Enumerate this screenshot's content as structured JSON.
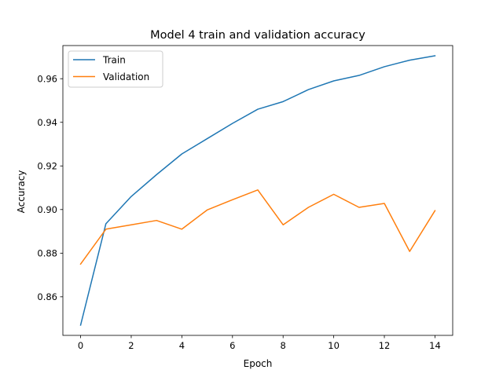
{
  "chart_data": {
    "type": "line",
    "title": "Model 4 train and validation accuracy",
    "xlabel": "Epoch",
    "ylabel": "Accuracy",
    "x": [
      0,
      1,
      2,
      3,
      4,
      5,
      6,
      7,
      8,
      9,
      10,
      11,
      12,
      13,
      14
    ],
    "series": [
      {
        "name": "Train",
        "color": "#1f77b4",
        "values": [
          0.847,
          0.8935,
          0.906,
          0.916,
          0.9255,
          0.9325,
          0.9395,
          0.946,
          0.9495,
          0.955,
          0.959,
          0.9615,
          0.9655,
          0.9685,
          0.9705
        ]
      },
      {
        "name": "Validation",
        "color": "#ff7f0e",
        "values": [
          0.875,
          0.891,
          0.893,
          0.895,
          0.891,
          0.8998,
          0.9045,
          0.909,
          0.893,
          0.901,
          0.907,
          0.901,
          0.9028,
          0.8808,
          0.8995
        ]
      }
    ],
    "xlim": [
      -0.7,
      14.7
    ],
    "ylim": [
      0.8423,
      0.9752
    ],
    "xticks": [
      0,
      2,
      4,
      6,
      8,
      10,
      12,
      14
    ],
    "xtick_labels": [
      "0",
      "2",
      "4",
      "6",
      "8",
      "10",
      "12",
      "14"
    ],
    "yticks": [
      0.86,
      0.88,
      0.9,
      0.92,
      0.94,
      0.96
    ],
    "ytick_labels": [
      "0.86",
      "0.88",
      "0.90",
      "0.92",
      "0.94",
      "0.96"
    ],
    "grid": false,
    "legend_position": "upper-left"
  }
}
